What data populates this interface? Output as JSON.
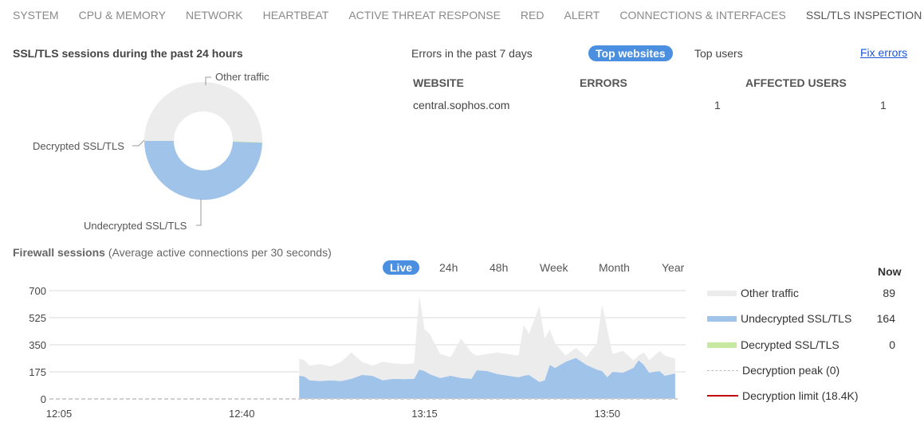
{
  "tabs": [
    "SYSTEM",
    "CPU & MEMORY",
    "NETWORK",
    "HEARTBEAT",
    "ACTIVE THREAT RESPONSE",
    "RED",
    "ALERT",
    "CONNECTIONS & INTERFACES",
    "SSL/TLS INSPECTION"
  ],
  "active_tab": "SSL/TLS INSPECTION",
  "donut": {
    "title": "SSL/TLS sessions during the past 24 hours",
    "chart_data": {
      "type": "pie",
      "donut": true,
      "slices": [
        {
          "name": "Other traffic",
          "value": 50.5,
          "color": "#ececec"
        },
        {
          "name": "Undecrypted SSL/TLS",
          "value": 49.5,
          "color": "#a0c3ea"
        },
        {
          "name": "Decrypted SSL/TLS",
          "value": 0,
          "color": "#c6e8a0"
        }
      ]
    }
  },
  "errors": {
    "title": "Errors in the past 7 days",
    "toggle": [
      "Top websites",
      "Top users"
    ],
    "fix_link": "Fix errors",
    "columns": [
      "WEBSITE",
      "ERRORS",
      "AFFECTED USERS"
    ],
    "rows": [
      [
        "central.sophos.com",
        "1",
        "1"
      ]
    ]
  },
  "sessions": {
    "title": "Firewall sessions",
    "subtitle": "(Average active connections per 30 seconds)",
    "ranges": [
      "Live",
      "24h",
      "48h",
      "Week",
      "Month",
      "Year"
    ],
    "active_range": "Live",
    "now_label": "Now",
    "legend": [
      {
        "name": "Other traffic",
        "now": "89",
        "color": "#ececec"
      },
      {
        "name": "Undecrypted SSL/TLS",
        "now": "164",
        "color": "#a0c3ea"
      },
      {
        "name": "Decrypted SSL/TLS",
        "now": "0",
        "color": "#c6e8a0"
      },
      {
        "name": "Decryption peak (0)",
        "color": "#bbbbbb"
      },
      {
        "name": "Decryption limit (18.4K)",
        "color": "#c00000"
      }
    ]
  },
  "chart_data": {
    "type": "area",
    "stacked": true,
    "ylim": [
      0,
      700
    ],
    "yticks": [
      "0",
      "175",
      "350",
      "525",
      "700"
    ],
    "xticks": [
      "12:05",
      "12:40",
      "13:15",
      "13:50"
    ],
    "xlim": [
      "12:05",
      "14:04"
    ],
    "grid": true,
    "x": [
      "12:51",
      "12:52",
      "12:53",
      "12:55",
      "12:57",
      "12:59",
      "13:01",
      "13:03",
      "13:05",
      "13:07",
      "13:09",
      "13:11",
      "13:13",
      "13:14",
      "13:15",
      "13:16",
      "13:18",
      "13:20",
      "13:22",
      "13:24",
      "13:25",
      "13:27",
      "13:29",
      "13:31",
      "13:33",
      "13:34",
      "13:35",
      "13:37",
      "13:38",
      "13:39",
      "13:40",
      "13:42",
      "13:44",
      "13:46",
      "13:48",
      "13:49",
      "13:50",
      "13:51",
      "13:53",
      "13:55",
      "13:56",
      "13:57",
      "13:58",
      "14:00",
      "14:01",
      "14:03"
    ],
    "series": [
      {
        "name": "Undecrypted SSL/TLS",
        "color": "#a0c3ea",
        "values": [
          150,
          145,
          120,
          115,
          120,
          115,
          130,
          155,
          150,
          120,
          130,
          128,
          130,
          190,
          180,
          160,
          135,
          150,
          135,
          130,
          185,
          180,
          160,
          150,
          140,
          150,
          155,
          110,
          120,
          220,
          200,
          240,
          265,
          220,
          190,
          180,
          140,
          175,
          170,
          200,
          250,
          220,
          170,
          180,
          150,
          165
        ]
      },
      {
        "name": "Other traffic",
        "color": "#ececec",
        "values": [
          110,
          105,
          95,
          110,
          90,
          125,
          170,
          85,
          65,
          120,
          100,
          97,
          100,
          480,
          270,
          260,
          155,
          120,
          255,
          170,
          95,
          110,
          140,
          140,
          140,
          330,
          265,
          490,
          270,
          230,
          160,
          40,
          65,
          50,
          170,
          430,
          310,
          115,
          140,
          50,
          30,
          80,
          80,
          130,
          130,
          95
        ]
      },
      {
        "name": "Decrypted SSL/TLS",
        "color": "#c6e8a0",
        "values": [
          0,
          0,
          0,
          0,
          0,
          0,
          0,
          0,
          0,
          0,
          0,
          0,
          0,
          0,
          0,
          0,
          0,
          0,
          0,
          0,
          0,
          0,
          0,
          0,
          0,
          0,
          0,
          0,
          0,
          0,
          0,
          0,
          0,
          0,
          0,
          0,
          0,
          0,
          0,
          0,
          0,
          0,
          0,
          0,
          0,
          0
        ]
      }
    ],
    "decryption_peak": 0
  }
}
